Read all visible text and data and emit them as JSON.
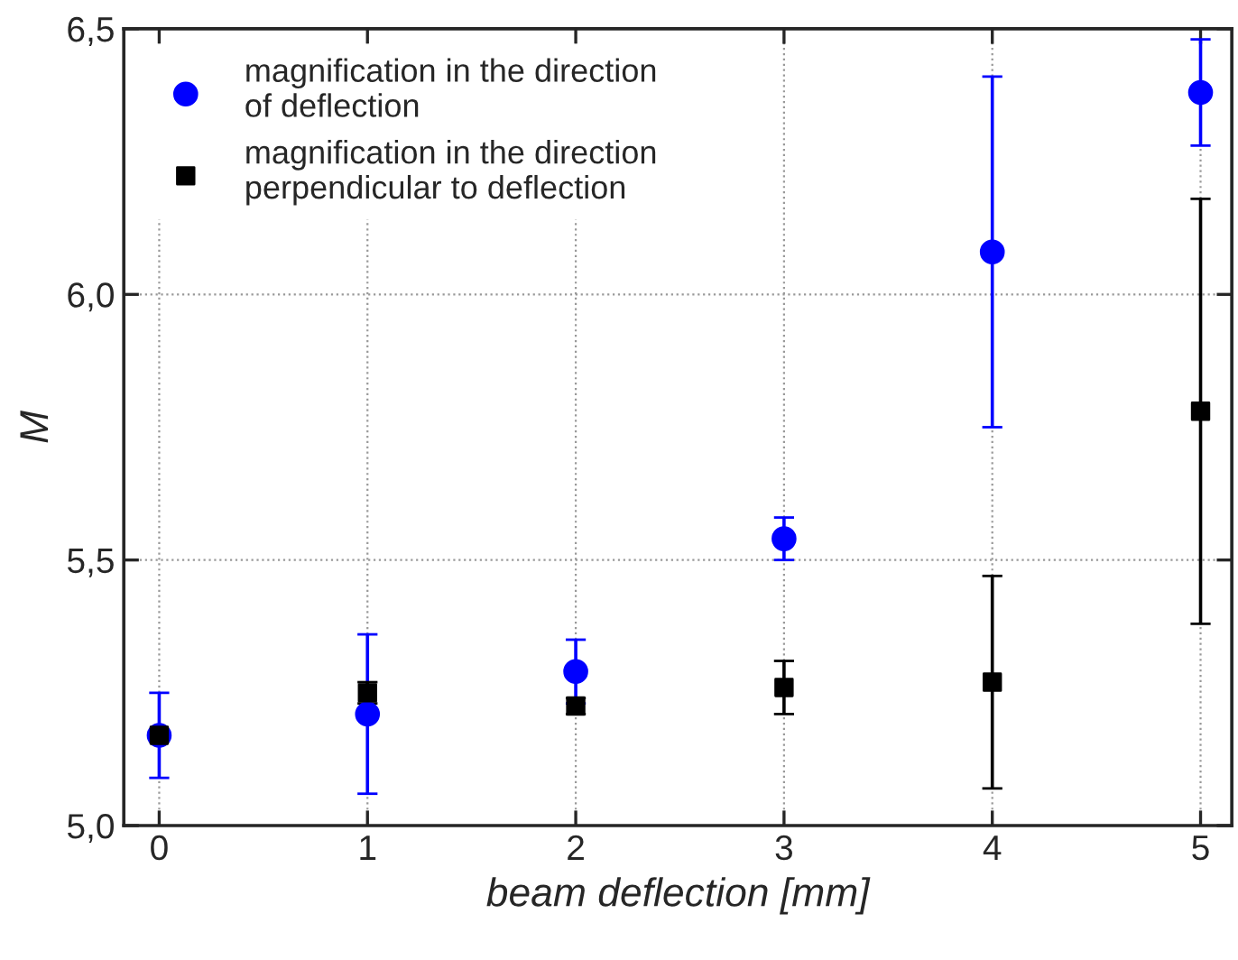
{
  "chart_data": {
    "type": "scatter",
    "xlabel": "beam deflection [mm]",
    "ylabel": "M",
    "x": [
      0,
      1,
      2,
      3,
      4,
      5
    ],
    "series": [
      {
        "name": "magnification in the direction\nof deflection",
        "color": "#0000ff",
        "marker": "circle",
        "values": [
          5.17,
          5.21,
          5.29,
          5.54,
          6.08,
          6.38
        ],
        "errors": [
          0.08,
          0.15,
          0.06,
          0.04,
          0.33,
          0.1
        ]
      },
      {
        "name": "magnification in the direction\nperpendicular to deflection",
        "color": "#000000",
        "marker": "square",
        "values": [
          5.17,
          5.25,
          5.225,
          5.26,
          5.27,
          5.78
        ],
        "errors": [
          null,
          0.02,
          0.015,
          0.05,
          0.2,
          0.4
        ]
      }
    ],
    "xlim": [
      -0.17,
      5.15
    ],
    "xticks": [
      0,
      1,
      2,
      3,
      4,
      5
    ],
    "ylim": [
      5.0,
      6.5
    ],
    "yticks": [
      {
        "value": 5.0,
        "label": "5,0"
      },
      {
        "value": 5.5,
        "label": "5,5"
      },
      {
        "value": 6.0,
        "label": "6,0"
      },
      {
        "value": 6.5,
        "label": "6,5"
      }
    ],
    "grid": true,
    "legend": "top left"
  }
}
